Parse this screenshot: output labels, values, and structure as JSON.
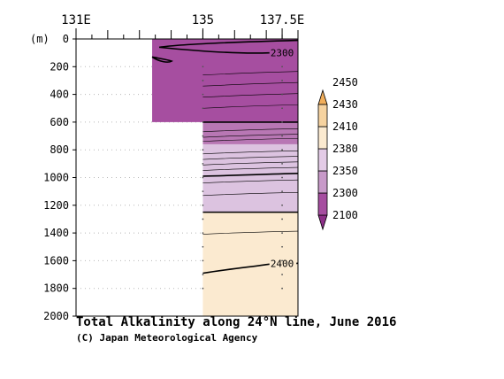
{
  "chart_data": {
    "type": "heatmap",
    "title": "Total Alkalinity along 24°N line, June 2016",
    "credit": "(C) Japan Meteorological Agency",
    "ylabel": "(m)",
    "x_ticks": [
      {
        "lon": 131,
        "label": "131E"
      },
      {
        "lon": 135,
        "label": "135"
      },
      {
        "lon": 137.5,
        "label": "137.5E"
      }
    ],
    "xlim": [
      131,
      138
    ],
    "ylim": [
      0,
      2000
    ],
    "y_ticks": [
      0,
      200,
      400,
      600,
      800,
      1000,
      1200,
      1400,
      1600,
      1800,
      2000
    ],
    "y_tick_labels": [
      "0",
      "200",
      "400",
      "600",
      "800",
      "1000",
      "1200",
      "1400",
      "1600",
      "1800",
      "2000"
    ],
    "grid": "dotted",
    "data_coverage": [
      {
        "lon_from": 133.4,
        "lon_to": 138,
        "depth_from": 0,
        "depth_to": 200
      },
      {
        "lon_from": 135,
        "lon_to": 138,
        "depth_from": 200,
        "depth_to": 2000
      }
    ],
    "bands": [
      {
        "depth_from": 0,
        "depth_to": 600,
        "level": "2100-2300",
        "color": "#a64ea0",
        "lon_from": 133.4
      },
      {
        "depth_from": 600,
        "depth_to": 760,
        "level": "2300-2350",
        "color": "#b877b4",
        "lon_from": 135
      },
      {
        "depth_from": 760,
        "depth_to": 1250,
        "level": "2350-2380",
        "color": "#dcc3e0",
        "lon_from": 135
      },
      {
        "depth_from": 1250,
        "depth_to": 2000,
        "level": "2380-2410",
        "color": "#fbead0",
        "lon_from": 135
      }
    ],
    "labeled_contours": [
      {
        "value": "2300",
        "lon": 137.5,
        "depth": 100
      },
      {
        "value": "2400",
        "lon": 137.5,
        "depth": 1620
      }
    ],
    "colorbar": {
      "levels": [
        "2100",
        "2300",
        "2350",
        "2380",
        "2410",
        "2430",
        "2450"
      ],
      "colors": [
        "#8d2f88",
        "#a64ea0",
        "#c89ac9",
        "#e3cbe6",
        "#fbead0",
        "#f6d3a0",
        "#f1ae5b"
      ]
    }
  }
}
